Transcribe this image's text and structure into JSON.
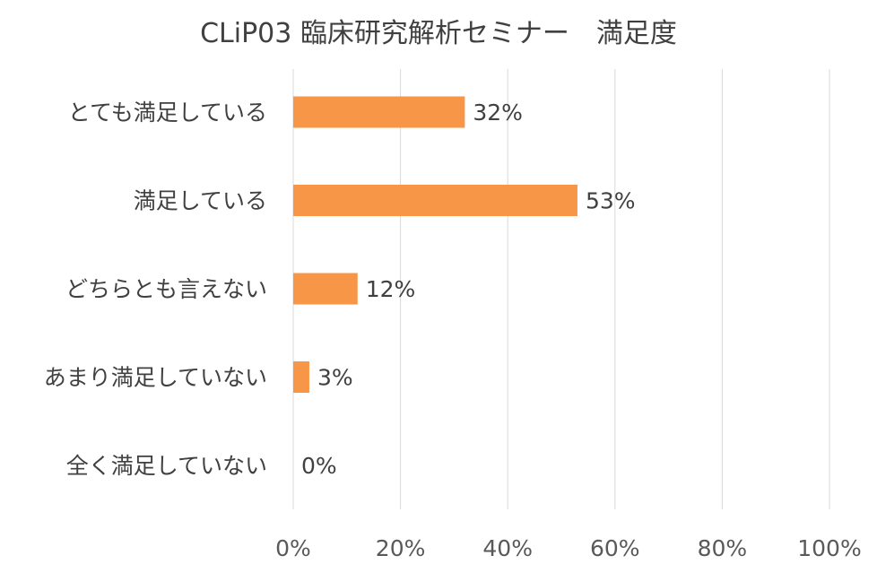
{
  "chart_data": {
    "type": "bar",
    "orientation": "horizontal",
    "title": "CLiP03 臨床研究解析セミナー　満足度",
    "categories": [
      "とても満足している",
      "満足している",
      "どちらとも言えない",
      "あまり満足していない",
      "全く満足していない"
    ],
    "values": [
      32,
      53,
      12,
      3,
      0
    ],
    "data_labels": [
      "32%",
      "53%",
      "12%",
      "3%",
      "0%"
    ],
    "xlim": [
      0,
      100
    ],
    "x_ticks": [
      "0%",
      "20%",
      "40%",
      "60%",
      "80%",
      "100%"
    ],
    "grid": true,
    "bar_color": "#F79646"
  }
}
